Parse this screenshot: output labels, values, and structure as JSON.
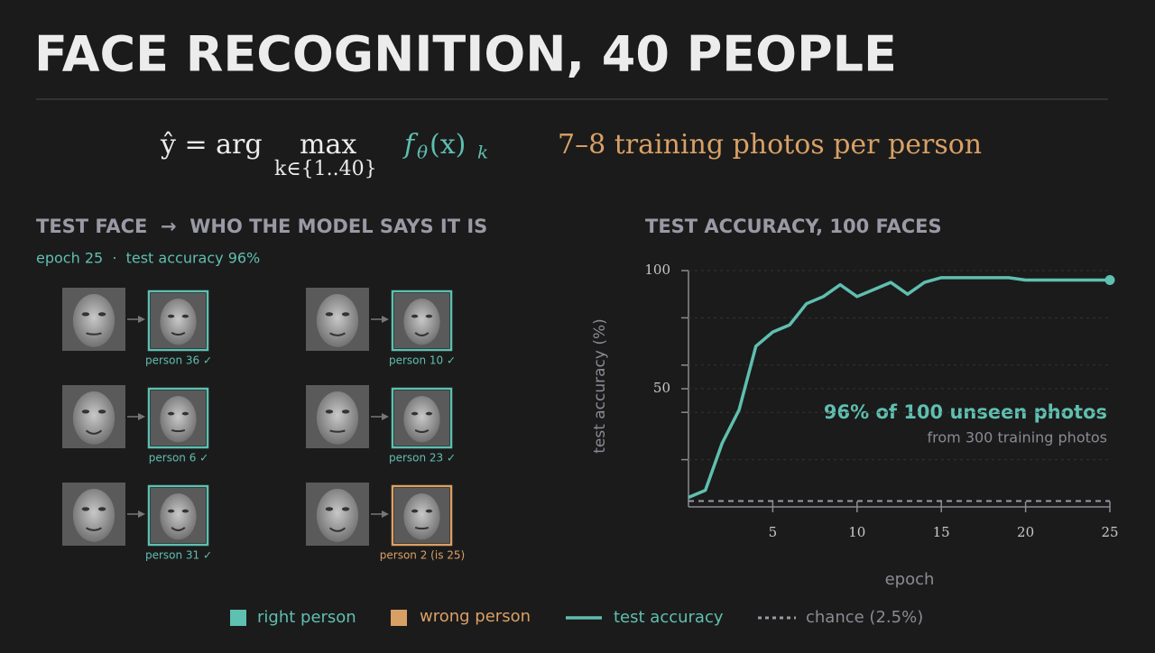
{
  "title": "FACE RECOGNITION, 40 PEOPLE",
  "formula": {
    "lhs": "ŷ = arg",
    "op": "max",
    "op_sub": "k∈{1..40}",
    "fn": "f",
    "fn_sub": "θ",
    "arg": "(x)",
    "arg_sub": "k"
  },
  "subtitle": "7–8 training photos per person",
  "faces_panel": {
    "heading": "TEST FACE  →  WHO THE MODEL SAYS IT IS",
    "status": "epoch 25  ·  test accuracy 96%",
    "pairs": [
      {
        "label": "person 36 ✓",
        "correct": true
      },
      {
        "label": "person 10 ✓",
        "correct": true
      },
      {
        "label": "person 6 ✓",
        "correct": true
      },
      {
        "label": "person 23 ✓",
        "correct": true
      },
      {
        "label": "person 31 ✓",
        "correct": true
      },
      {
        "label": "person 2  (is 25)",
        "correct": false
      }
    ]
  },
  "chart_data": {
    "type": "line",
    "title": "TEST ACCURACY, 100 FACES",
    "x_label": "epoch",
    "y_label": "test accuracy (%)",
    "x": [
      0,
      1,
      2,
      3,
      4,
      5,
      6,
      7,
      8,
      9,
      10,
      11,
      12,
      13,
      14,
      15,
      16,
      17,
      18,
      19,
      20,
      21,
      22,
      23,
      24,
      25
    ],
    "series": [
      {
        "name": "test accuracy",
        "color": "#5fbfb0",
        "values": [
          4,
          7,
          27,
          41,
          68,
          74,
          77,
          86,
          89,
          94,
          89,
          92,
          95,
          90,
          95,
          97,
          97,
          97,
          97,
          97,
          96,
          96,
          96,
          96,
          96,
          96
        ]
      }
    ],
    "chance": 2.5,
    "chance_label": "chance (2.5%)",
    "xlim": [
      0,
      25
    ],
    "ylim": [
      0,
      100
    ],
    "xticks": [
      5,
      10,
      15,
      20,
      25
    ],
    "yticks": [
      50,
      100
    ],
    "yminorticks": [
      20,
      40,
      60,
      80
    ],
    "grid": true,
    "annotation": "96% of 100 unseen photos",
    "annotation_sub": "from 300 training photos"
  },
  "legend": {
    "right": "right person",
    "wrong": "wrong person",
    "right_color": "#5fbfb0",
    "wrong_color": "#d9a066"
  }
}
